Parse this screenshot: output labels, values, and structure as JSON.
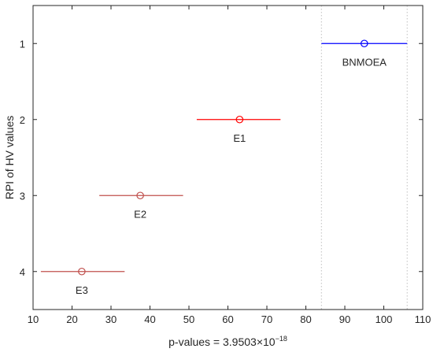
{
  "chart_data": {
    "type": "scatter",
    "title": "",
    "xlabel": "p-values = 3.9503×10",
    "xlabel_exponent": "−18",
    "ylabel": "RPI of HV values",
    "xlim": [
      10,
      110
    ],
    "ylim": [
      0.5,
      4.5
    ],
    "y_reversed": true,
    "x_ticks": [
      10,
      20,
      30,
      40,
      50,
      60,
      70,
      80,
      90,
      100,
      110
    ],
    "y_ticks": [
      1,
      2,
      3,
      4
    ],
    "grid": false,
    "series": [
      {
        "name": "BNMOEA",
        "y": 1,
        "mean": 95,
        "lower": 84,
        "upper": 106,
        "color": "#0000ff"
      },
      {
        "name": "E1",
        "y": 2,
        "mean": 63,
        "lower": 52,
        "upper": 73.5,
        "color": "#ff0000"
      },
      {
        "name": "E2",
        "y": 3,
        "mean": 37.5,
        "lower": 27,
        "upper": 48.5,
        "color": "#c0504d"
      },
      {
        "name": "E3",
        "y": 4,
        "mean": 22.5,
        "lower": 12,
        "upper": 33.5,
        "color": "#c0504d"
      }
    ],
    "reference_lines_x": [
      84,
      106
    ],
    "reference_line_color": "#bfbfbf"
  }
}
